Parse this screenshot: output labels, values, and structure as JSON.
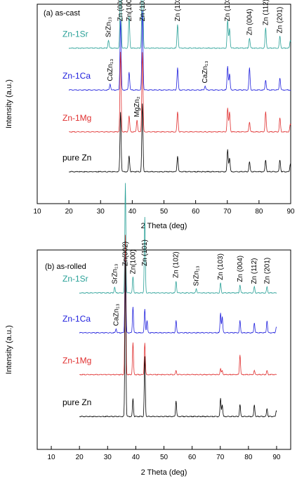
{
  "colors": {
    "Zn-1Sr": "#2aa198",
    "Zn-1Ca": "#2020dd",
    "Zn-1Mg": "#e03030",
    "pure Zn": "#000000",
    "axis": "#000000"
  },
  "chart_data": [
    {
      "type": "line",
      "panel_label": "(a) as-cast",
      "xlabel": "2 Theta (deg)",
      "ylabel": "Intensity (a.u.)",
      "xlim": [
        10,
        90
      ],
      "xticks": [
        10,
        20,
        30,
        40,
        50,
        60,
        70,
        80,
        90
      ],
      "yticks_shown": false,
      "grid": false,
      "series": [
        {
          "name": "Zn-1Sr",
          "baseline_rel": 0.78,
          "peaks": [
            [
              32.5,
              0.04
            ],
            [
              36.3,
              0.42
            ],
            [
              39.0,
              0.16
            ],
            [
              43.2,
              0.52
            ],
            [
              54.3,
              0.12
            ],
            [
              70.1,
              0.14
            ],
            [
              70.7,
              0.1
            ],
            [
              77.0,
              0.05
            ],
            [
              82.1,
              0.1
            ],
            [
              86.6,
              0.06
            ],
            [
              89.9,
              0.04
            ]
          ]
        },
        {
          "name": "Zn-1Ca",
          "baseline_rel": 0.57,
          "peaks": [
            [
              33.0,
              0.03
            ],
            [
              36.3,
              0.35
            ],
            [
              39.0,
              0.09
            ],
            [
              43.2,
              0.4
            ],
            [
              54.3,
              0.11
            ],
            [
              63.0,
              0.02
            ],
            [
              70.1,
              0.12
            ],
            [
              70.7,
              0.08
            ],
            [
              77.0,
              0.11
            ],
            [
              82.1,
              0.05
            ],
            [
              86.6,
              0.06
            ]
          ]
        },
        {
          "name": "Zn-1Mg",
          "baseline_rel": 0.36,
          "peaks": [
            [
              36.3,
              0.4
            ],
            [
              39.0,
              0.08
            ],
            [
              41.5,
              0.06
            ],
            [
              43.2,
              0.4
            ],
            [
              54.3,
              0.1
            ],
            [
              70.1,
              0.12
            ],
            [
              70.7,
              0.1
            ],
            [
              77.0,
              0.05
            ],
            [
              82.1,
              0.1
            ],
            [
              86.6,
              0.07
            ],
            [
              89.9,
              0.04
            ]
          ]
        },
        {
          "name": "pure Zn",
          "baseline_rel": 0.16,
          "peaks": [
            [
              36.3,
              0.3
            ],
            [
              39.0,
              0.08
            ],
            [
              43.2,
              0.34
            ],
            [
              54.3,
              0.08
            ],
            [
              70.1,
              0.11
            ],
            [
              70.7,
              0.07
            ],
            [
              77.0,
              0.05
            ],
            [
              82.1,
              0.06
            ],
            [
              86.6,
              0.06
            ],
            [
              89.9,
              0.04
            ]
          ]
        }
      ],
      "annotations": [
        {
          "text": "SrZn₁₃",
          "x": 32.5,
          "series": "Zn-1Sr"
        },
        {
          "text": "Zn (002)",
          "x": 36.3,
          "series": "Zn-1Sr"
        },
        {
          "text": "Zn(100)",
          "x": 39.0,
          "series": "Zn-1Sr"
        },
        {
          "text": "Zn (101)",
          "x": 43.2,
          "series": "Zn-1Sr"
        },
        {
          "text": "Zn (102)",
          "x": 54.3,
          "series": "Zn-1Sr"
        },
        {
          "text": "Zn (103)",
          "x": 70.1,
          "series": "Zn-1Sr"
        },
        {
          "text": "Zn (004)",
          "x": 77.0,
          "series": "Zn-1Sr"
        },
        {
          "text": "Zn (112)",
          "x": 82.1,
          "series": "Zn-1Sr"
        },
        {
          "text": "Zn (201)",
          "x": 86.6,
          "series": "Zn-1Sr"
        },
        {
          "text": "CaZn₁₃",
          "x": 33.0,
          "series": "Zn-1Ca"
        },
        {
          "text": "CaZn₁₃",
          "x": 63.0,
          "series": "Zn-1Ca"
        },
        {
          "text": "MgZn₂",
          "x": 41.5,
          "series": "Zn-1Mg"
        }
      ]
    },
    {
      "type": "line",
      "panel_label": "(b) as-rolled",
      "xlabel": "2 Theta (deg)",
      "ylabel": "Intensity (a.u.)",
      "xlim": [
        5,
        95
      ],
      "xticks": [
        10,
        20,
        30,
        40,
        50,
        60,
        70,
        80,
        90
      ],
      "yticks_shown": false,
      "grid": false,
      "series": [
        {
          "name": "Zn-1Sr",
          "baseline_rel": 0.785,
          "peaks": [
            [
              32.5,
              0.03
            ],
            [
              36.3,
              0.55
            ],
            [
              39.0,
              0.08
            ],
            [
              43.2,
              0.38
            ],
            [
              54.3,
              0.06
            ],
            [
              61.5,
              0.02
            ],
            [
              70.1,
              0.05
            ],
            [
              77.0,
              0.04
            ],
            [
              82.1,
              0.03
            ],
            [
              86.6,
              0.03
            ]
          ]
        },
        {
          "name": "Zn-1Ca",
          "baseline_rel": 0.585,
          "peaks": [
            [
              33.0,
              0.02
            ],
            [
              36.3,
              0.42
            ],
            [
              39.0,
              0.13
            ],
            [
              43.2,
              0.12
            ],
            [
              44.0,
              0.06
            ],
            [
              54.3,
              0.06
            ],
            [
              70.1,
              0.1
            ],
            [
              70.7,
              0.08
            ],
            [
              77.0,
              0.06
            ],
            [
              82.1,
              0.05
            ],
            [
              86.6,
              0.06
            ],
            [
              89.9,
              0.03
            ]
          ]
        },
        {
          "name": "Zn-1Mg",
          "baseline_rel": 0.375,
          "peaks": [
            [
              36.3,
              0.7
            ],
            [
              39.0,
              0.16
            ],
            [
              43.2,
              0.16
            ],
            [
              54.3,
              0.02
            ],
            [
              70.1,
              0.03
            ],
            [
              70.7,
              0.02
            ],
            [
              77.0,
              0.1
            ],
            [
              82.1,
              0.02
            ],
            [
              86.6,
              0.02
            ]
          ]
        },
        {
          "name": "pure Zn",
          "baseline_rel": 0.165,
          "peaks": [
            [
              36.3,
              0.78
            ],
            [
              39.0,
              0.09
            ],
            [
              43.2,
              0.3
            ],
            [
              54.3,
              0.08
            ],
            [
              70.1,
              0.09
            ],
            [
              70.7,
              0.06
            ],
            [
              77.0,
              0.06
            ],
            [
              82.1,
              0.06
            ],
            [
              86.6,
              0.04
            ],
            [
              89.9,
              0.03
            ]
          ]
        }
      ],
      "annotations": [
        {
          "text": "SrZn₁₃",
          "x": 32.5,
          "series": "Zn-1Sr"
        },
        {
          "text": "Zn(002)",
          "x": 36.3,
          "series": "Zn-1Sr"
        },
        {
          "text": "Zn(100)",
          "x": 39.0,
          "series": "Zn-1Sr"
        },
        {
          "text": "Zn (101)",
          "x": 43.2,
          "series": "Zn-1Sr"
        },
        {
          "text": "Zn (102)",
          "x": 54.3,
          "series": "Zn-1Sr"
        },
        {
          "text": "SrZn₁₃",
          "x": 61.5,
          "series": "Zn-1Sr"
        },
        {
          "text": "Zn (103)",
          "x": 70.1,
          "series": "Zn-1Sr"
        },
        {
          "text": "Zn (004)",
          "x": 77.0,
          "series": "Zn-1Sr"
        },
        {
          "text": "Zn (112)",
          "x": 82.1,
          "series": "Zn-1Sr"
        },
        {
          "text": "Zn (201)",
          "x": 86.6,
          "series": "Zn-1Sr"
        },
        {
          "text": "CaZn₁₃",
          "x": 33.0,
          "series": "Zn-1Ca"
        }
      ]
    }
  ]
}
